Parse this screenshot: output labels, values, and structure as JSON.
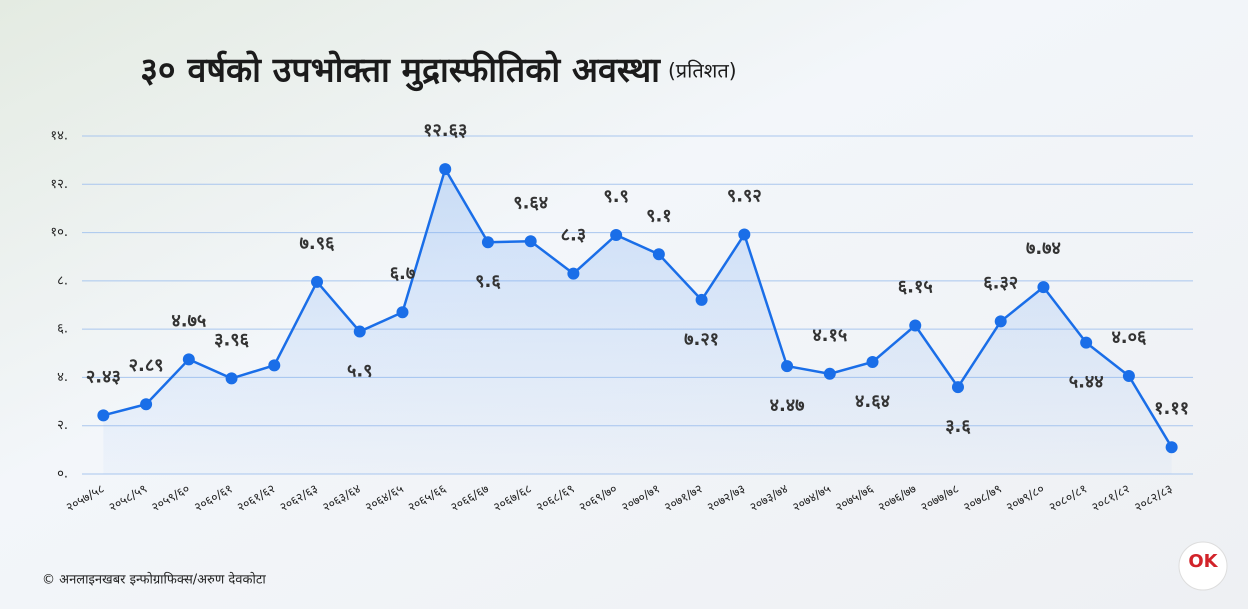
{
  "chart_data": {
    "type": "line",
    "title": "३० वर्षको उपभोक्ता मुद्रास्फीतिको अवस्था",
    "subtitle": "(प्रतिशत)",
    "categories": [
      "२०५७/५८",
      "२०५८/५९",
      "२०५९/६०",
      "२०६०/६१",
      "२०६१/६२",
      "२०६२/६३",
      "२०६३/६४",
      "२०६४/६५",
      "२०६५/६६",
      "२०६६/६७",
      "२०६७/६८",
      "२०६८/६९",
      "२०६९/७०",
      "२०७०/७१",
      "२०७१/७२",
      "२०७२/७३",
      "२०७३/७४",
      "२०७४/७५",
      "२०७५/७६",
      "२०७६/७७",
      "२०७७/७८",
      "२०७८/७९",
      "२०७९/८०",
      "२०८०/८१",
      "२०८१/८२",
      "२०८२/८३"
    ],
    "values": [
      2.43,
      2.89,
      4.75,
      3.96,
      4.5,
      7.96,
      5.9,
      6.7,
      12.63,
      9.6,
      9.64,
      8.3,
      9.9,
      9.1,
      7.21,
      9.92,
      4.47,
      4.15,
      4.64,
      6.15,
      3.6,
      6.32,
      7.74,
      5.44,
      4.06,
      1.11
    ],
    "value_labels": [
      "२.४३",
      "२.८९",
      "४.७५",
      "३.९६",
      null,
      "७.९६",
      "५.९",
      "६.७",
      "१२.६३",
      "९.६",
      "९.६४",
      "८.३",
      "९.९",
      "९.१",
      "७.२१",
      "९.९२",
      "४.४७",
      "४.१५",
      "४.६४",
      "६.१५",
      "३.६",
      "६.३२",
      "७.७४",
      "५.४४",
      "४.०६",
      "१.११"
    ],
    "color": "#1a6ee8",
    "ylim": [
      0,
      14
    ],
    "yticks": [
      {
        "value": 0,
        "label": "०."
      },
      {
        "value": 2,
        "label": "२."
      },
      {
        "value": 4,
        "label": "४."
      },
      {
        "value": 6,
        "label": "६."
      },
      {
        "value": 8,
        "label": "८."
      },
      {
        "value": 10,
        "label": "१०."
      },
      {
        "value": 12,
        "label": "१२."
      },
      {
        "value": 14,
        "label": "१४."
      }
    ],
    "grid": true,
    "source": "© अनलाइनखबर इन्फोग्राफिक्स/अरुण देवकोटा",
    "logo": "OK"
  }
}
